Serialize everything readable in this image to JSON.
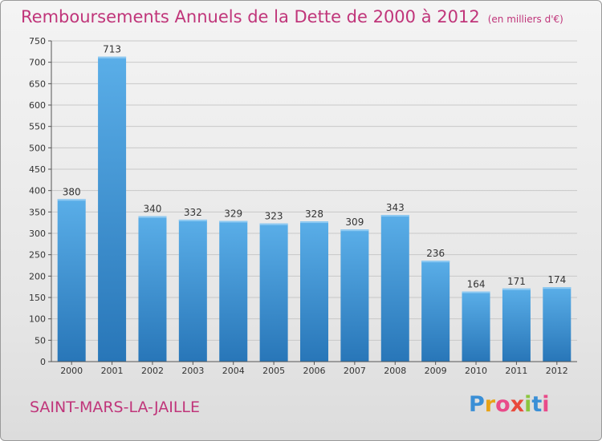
{
  "header": {
    "title": "Remboursements Annuels de la Dette de 2000 à 2012",
    "subtitle": "(en milliers d'€)"
  },
  "footer": {
    "commune": "SAINT-MARS-LA-JAILLE",
    "logo_letters": [
      "P",
      "r",
      "o",
      "x",
      "i",
      "t",
      "i"
    ],
    "logo_colors": [
      "#3a8fd6",
      "#e8a317",
      "#e94b8a",
      "#e94b3c",
      "#8cc63f",
      "#3a8fd6",
      "#e94b8a"
    ]
  },
  "colors": {
    "bar_light": "#5aaee8",
    "bar_dark": "#2876b8",
    "accent": "#c0357a"
  },
  "chart_data": {
    "type": "bar",
    "title": "Remboursements Annuels de la Dette de 2000 à 2012",
    "subtitle": "(en milliers d'€)",
    "categories": [
      "2000",
      "2001",
      "2002",
      "2003",
      "2004",
      "2005",
      "2006",
      "2007",
      "2008",
      "2009",
      "2010",
      "2011",
      "2012"
    ],
    "values": [
      380,
      713,
      340,
      332,
      329,
      323,
      328,
      309,
      343,
      236,
      164,
      171,
      174
    ],
    "ylim": [
      0,
      750
    ],
    "yticks": [
      0,
      50,
      100,
      150,
      200,
      250,
      300,
      350,
      400,
      450,
      500,
      550,
      600,
      650,
      700,
      750
    ],
    "grid": true,
    "legend": "none"
  }
}
